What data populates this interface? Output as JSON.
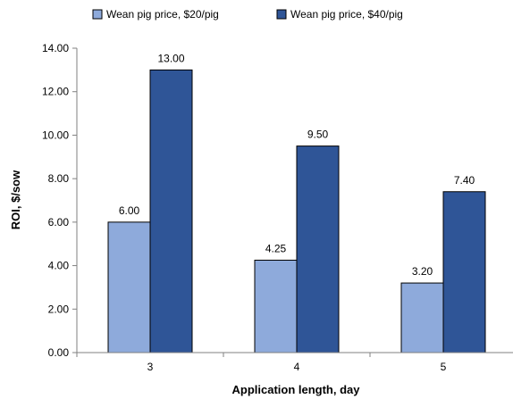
{
  "chart_data": {
    "type": "bar",
    "categories": [
      "3",
      "4",
      "5"
    ],
    "series": [
      {
        "name": "Wean pig price, $20/pig",
        "values": [
          6.0,
          4.25,
          3.2
        ],
        "data_labels": [
          "6.00",
          "4.25",
          "3.20"
        ],
        "color": "#8EAADB"
      },
      {
        "name": "Wean pig price, $40/pig",
        "values": [
          13.0,
          9.5,
          7.4
        ],
        "data_labels": [
          "13.00",
          "9.50",
          "7.40"
        ],
        "color": "#2F5597"
      }
    ],
    "xlabel": "Application length, day",
    "ylabel": "ROI, $/sow",
    "ylim": [
      0,
      14
    ],
    "yticks": [
      0,
      2,
      4,
      6,
      8,
      10,
      12,
      14
    ],
    "ytick_labels": [
      "0.00",
      "2.00",
      "4.00",
      "6.00",
      "8.00",
      "10.00",
      "12.00",
      "14.00"
    ],
    "grid": false,
    "legend_position": "top"
  }
}
